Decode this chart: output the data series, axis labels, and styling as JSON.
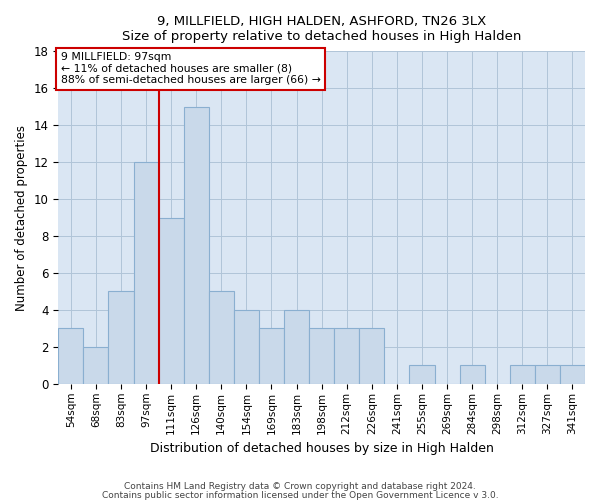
{
  "title1": "9, MILLFIELD, HIGH HALDEN, ASHFORD, TN26 3LX",
  "title2": "Size of property relative to detached houses in High Halden",
  "xlabel": "Distribution of detached houses by size in High Halden",
  "ylabel": "Number of detached properties",
  "footer1": "Contains HM Land Registry data © Crown copyright and database right 2024.",
  "footer2": "Contains public sector information licensed under the Open Government Licence v 3.0.",
  "bin_labels": [
    "54sqm",
    "68sqm",
    "83sqm",
    "97sqm",
    "111sqm",
    "126sqm",
    "140sqm",
    "154sqm",
    "169sqm",
    "183sqm",
    "198sqm",
    "212sqm",
    "226sqm",
    "241sqm",
    "255sqm",
    "269sqm",
    "284sqm",
    "298sqm",
    "312sqm",
    "327sqm",
    "341sqm"
  ],
  "bar_values": [
    3,
    2,
    5,
    12,
    9,
    15,
    5,
    4,
    3,
    4,
    3,
    3,
    3,
    0,
    1,
    0,
    1,
    0,
    1,
    1,
    1
  ],
  "bar_color": "#c9d9ea",
  "bar_edge_color": "#8aafd0",
  "vline_index": 3,
  "vline_color": "#cc0000",
  "annotation_title": "9 MILLFIELD: 97sqm",
  "annotation_line1": "← 11% of detached houses are smaller (8)",
  "annotation_line2": "88% of semi-detached houses are larger (66) →",
  "annotation_box_color": "#ffffff",
  "annotation_box_edge": "#cc0000",
  "ylim": [
    0,
    18
  ],
  "yticks": [
    0,
    2,
    4,
    6,
    8,
    10,
    12,
    14,
    16,
    18
  ],
  "figure_background_color": "#ffffff",
  "plot_background_color": "#dae6f3"
}
